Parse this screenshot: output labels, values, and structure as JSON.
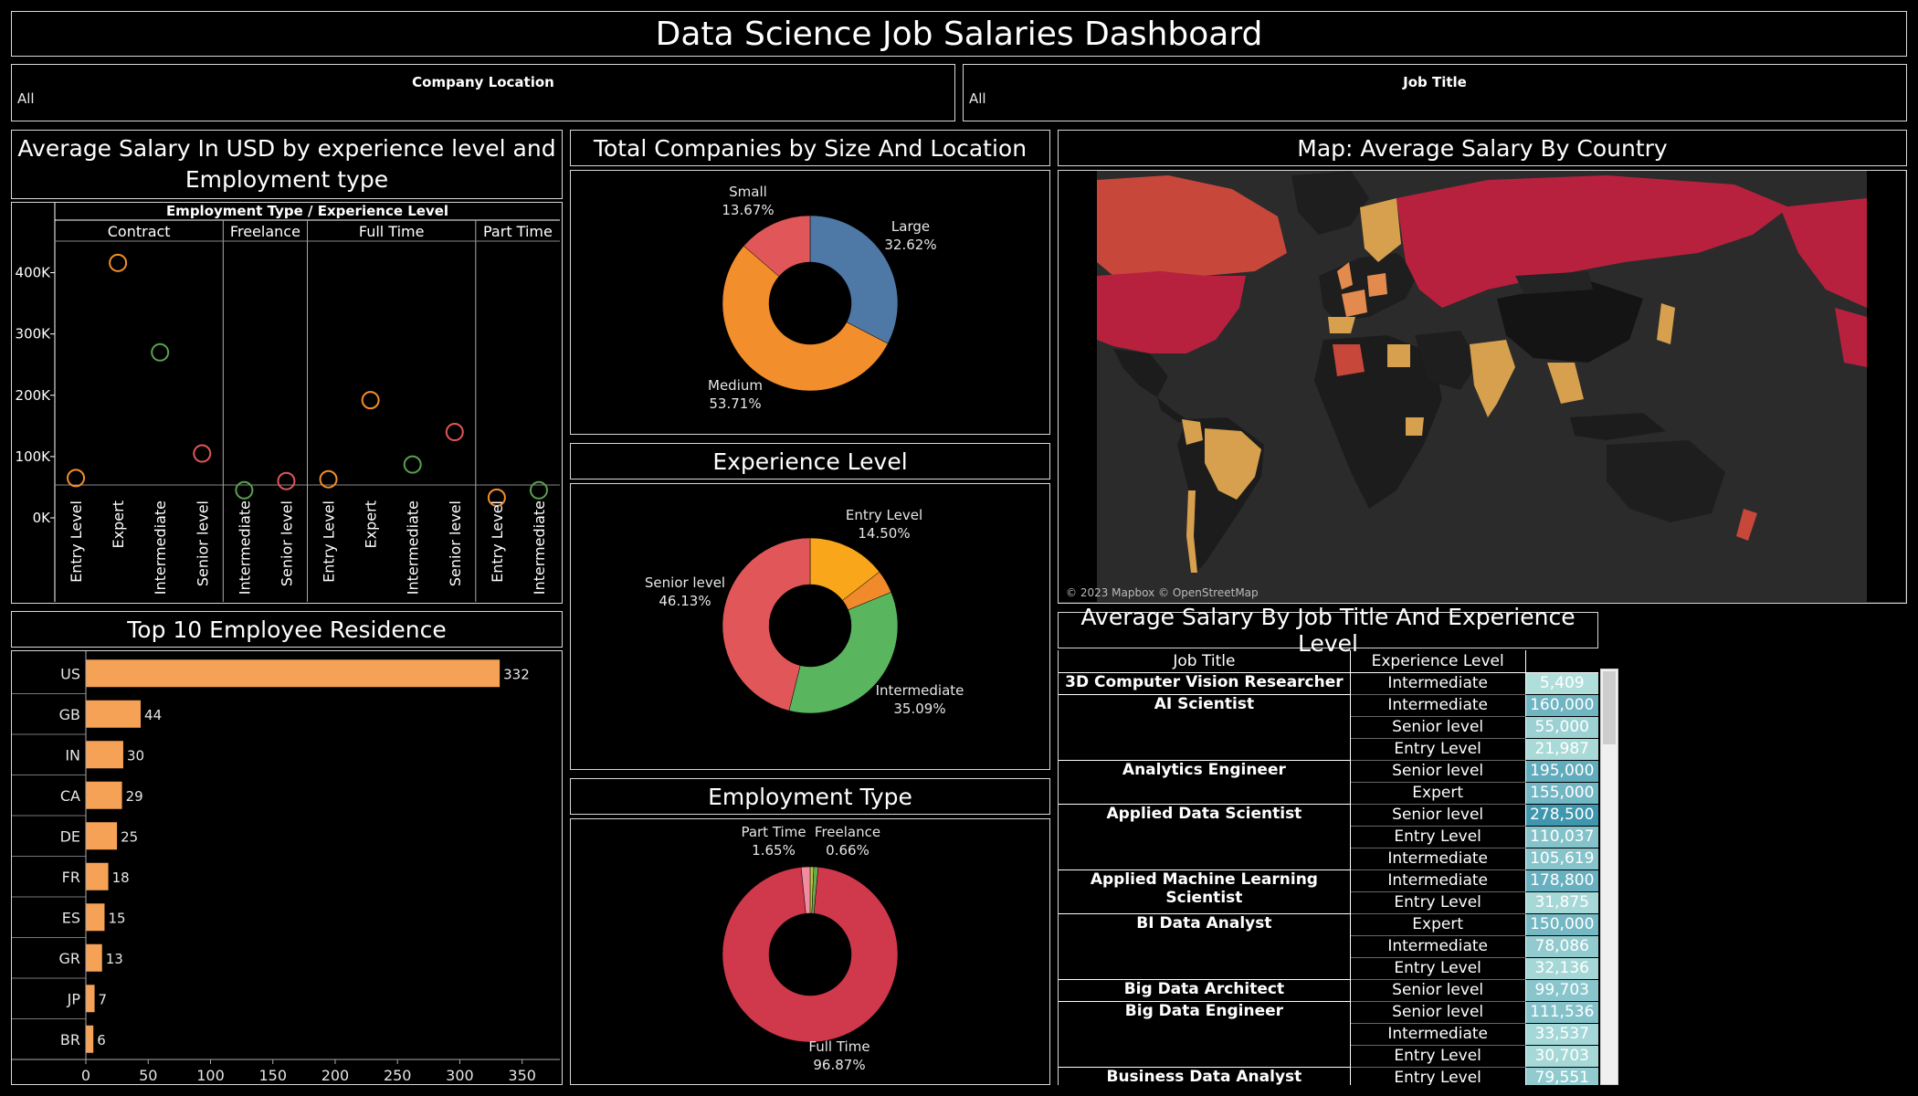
{
  "dashboard_title": "Data Science Job Salaries Dashboard",
  "filters": [
    {
      "label": "Company Location",
      "value": "All"
    },
    {
      "label": "Job Title",
      "value": "All"
    }
  ],
  "titles": {
    "scatter_line1": "Average Salary In USD by experience level and",
    "scatter_line2": "Employment type",
    "companies": "Total Companies by Size And Location",
    "experience": "Experience Level",
    "employment": "Employment Type",
    "map": "Map: Average Salary By Country",
    "residence": "Top 10 Employee Residence",
    "table": "Average Salary By Job Title And Experience Level"
  },
  "colors": {
    "orange": "#f28e2b",
    "red": "#e15759",
    "green": "#59a14f",
    "blue": "#4e79a7",
    "bar": "#f5a257",
    "crimson": "#d0384c"
  },
  "chart_data": [
    {
      "id": "scatter",
      "type": "scatter",
      "header_top": "Employment Type  /  Experience Level",
      "groups": [
        {
          "name": "Contract",
          "points": [
            {
              "label": "Entry Level",
              "value": 65000
            },
            {
              "label": "Expert",
              "value": 416000
            },
            {
              "label": "Intermediate",
              "value": 270000
            },
            {
              "label": "Senior level",
              "value": 105000
            }
          ]
        },
        {
          "name": "Freelance",
          "points": [
            {
              "label": "Intermediate",
              "value": 45000
            },
            {
              "label": "Senior level",
              "value": 60000
            }
          ]
        },
        {
          "name": "Full Time",
          "points": [
            {
              "label": "Entry Level",
              "value": 63000
            },
            {
              "label": "Expert",
              "value": 192000
            },
            {
              "label": "Intermediate",
              "value": 87000
            },
            {
              "label": "Senior level",
              "value": 140000
            }
          ]
        },
        {
          "name": "Part Time",
          "points": [
            {
              "label": "Entry Level",
              "value": 33000
            },
            {
              "label": "Intermediate",
              "value": 45000
            }
          ]
        }
      ],
      "yticks": [
        "0K",
        "100K",
        "200K",
        "300K",
        "400K"
      ],
      "ylim": [
        0,
        450000
      ]
    },
    {
      "id": "companies",
      "type": "pie",
      "slices": [
        {
          "name": "Large",
          "pct": "32.62%",
          "value": 32.62,
          "color": "#4e79a7"
        },
        {
          "name": "Medium",
          "pct": "53.71%",
          "value": 53.71,
          "color": "#f28e2b"
        },
        {
          "name": "Small",
          "pct": "13.67%",
          "value": 13.67,
          "color": "#e15759"
        }
      ]
    },
    {
      "id": "experience",
      "type": "pie",
      "slices": [
        {
          "name": "Entry Level",
          "pct": "14.50%",
          "value": 14.5,
          "color": "#f9a61a"
        },
        {
          "name": "",
          "pct": "",
          "value": 4.28,
          "color": "#f08a2a"
        },
        {
          "name": "Intermediate",
          "pct": "35.09%",
          "value": 35.09,
          "color": "#59b65f"
        },
        {
          "name": "Senior level",
          "pct": "46.13%",
          "value": 46.13,
          "color": "#e15759"
        }
      ]
    },
    {
      "id": "employment",
      "type": "pie",
      "slices": [
        {
          "name": "Freelance",
          "pct": "0.66%",
          "value": 0.66,
          "color": "#b5c935"
        },
        {
          "name": "",
          "pct": "",
          "value": 0.82,
          "color": "#6aa84f"
        },
        {
          "name": "Full Time",
          "pct": "96.87%",
          "value": 96.87,
          "color": "#d0384c"
        },
        {
          "name": "Part Time",
          "pct": "1.65%",
          "value": 1.65,
          "color": "#f08ba0"
        }
      ]
    },
    {
      "id": "residence",
      "type": "bar",
      "categories": [
        "US",
        "GB",
        "IN",
        "CA",
        "DE",
        "FR",
        "ES",
        "GR",
        "JP",
        "BR"
      ],
      "values": [
        332,
        44,
        30,
        29,
        25,
        18,
        15,
        13,
        7,
        6
      ],
      "xticks": [
        0,
        50,
        100,
        150,
        200,
        250,
        300,
        350
      ],
      "xlim": [
        0,
        370
      ]
    },
    {
      "id": "salary_table",
      "type": "table",
      "headers": [
        "Job Title",
        "Experience Level",
        ""
      ],
      "groups": [
        {
          "title": "3D Computer Vision Researcher",
          "rows": [
            [
              "Intermediate",
              "5,409",
              5409
            ]
          ]
        },
        {
          "title": "AI Scientist",
          "rows": [
            [
              "Intermediate",
              "160,000",
              160000
            ],
            [
              "Senior level",
              "55,000",
              55000
            ],
            [
              "Entry Level",
              "21,987",
              21987
            ]
          ]
        },
        {
          "title": "Analytics Engineer",
          "rows": [
            [
              "Senior level",
              "195,000",
              195000
            ],
            [
              "Expert",
              "155,000",
              155000
            ]
          ]
        },
        {
          "title": "Applied Data Scientist",
          "rows": [
            [
              "Senior level",
              "278,500",
              278500
            ],
            [
              "Entry Level",
              "110,037",
              110037
            ],
            [
              "Intermediate",
              "105,619",
              105619
            ]
          ]
        },
        {
          "title": "Applied Machine Learning Scientist",
          "rows": [
            [
              "Intermediate",
              "178,800",
              178800
            ],
            [
              "Entry Level",
              "31,875",
              31875
            ]
          ]
        },
        {
          "title": "BI Data Analyst",
          "rows": [
            [
              "Expert",
              "150,000",
              150000
            ],
            [
              "Intermediate",
              "78,086",
              78086
            ],
            [
              "Entry Level",
              "32,136",
              32136
            ]
          ]
        },
        {
          "title": "Big Data Architect",
          "rows": [
            [
              "Senior level",
              "99,703",
              99703
            ]
          ]
        },
        {
          "title": "Big Data Engineer",
          "rows": [
            [
              "Senior level",
              "111,536",
              111536
            ],
            [
              "Intermediate",
              "33,537",
              33537
            ],
            [
              "Entry Level",
              "30,703",
              30703
            ]
          ]
        },
        {
          "title": "Business Data Analyst",
          "rows": [
            [
              "Entry Level",
              "79,551",
              79551
            ]
          ]
        }
      ]
    }
  ],
  "map": {
    "attribution": "© 2023 Mapbox © OpenStreetMap"
  }
}
